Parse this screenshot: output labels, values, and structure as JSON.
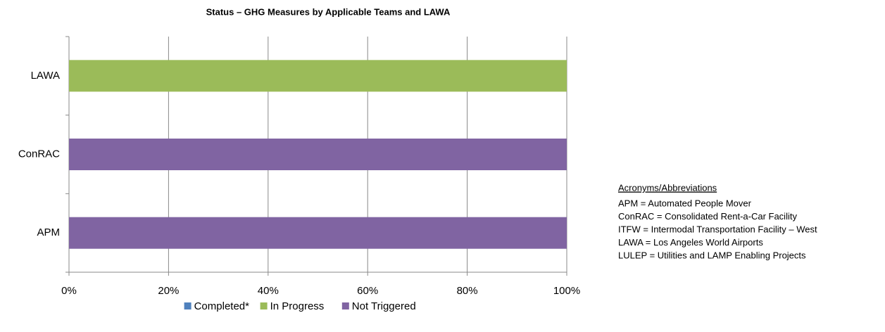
{
  "chart_data": {
    "type": "stacked_barh",
    "title": "Status – GHG Measures by Applicable Teams and LAWA",
    "categories": [
      "LAWA",
      "ConRAC",
      "APM"
    ],
    "series": [
      {
        "name": "Completed*",
        "color": "#4f81bd",
        "values": [
          0,
          0,
          0
        ]
      },
      {
        "name": "In Progress",
        "color": "#9bbb59",
        "values": [
          100,
          0,
          0
        ]
      },
      {
        "name": "Not Triggered",
        "color": "#8064a2",
        "values": [
          0,
          100,
          100
        ]
      }
    ],
    "xlim": [
      0,
      100
    ],
    "xticks": [
      {
        "value": 0,
        "label": "0%"
      },
      {
        "value": 20,
        "label": "20%"
      },
      {
        "value": 40,
        "label": "40%"
      },
      {
        "value": 60,
        "label": "60%"
      },
      {
        "value": 80,
        "label": "80%"
      },
      {
        "value": 100,
        "label": "100%"
      }
    ],
    "grid": true,
    "legend": "bottom",
    "annotation": {
      "title": "Acronyms/Abbreviations",
      "lines": [
        "APM = Automated People Mover",
        "ConRAC = Consolidated Rent-a-Car Facility",
        "ITFW = Intermodal Transportation Facility – West",
        "LAWA = Los Angeles World Airports",
        "LULEP = Utilities and LAMP Enabling Projects"
      ]
    }
  }
}
